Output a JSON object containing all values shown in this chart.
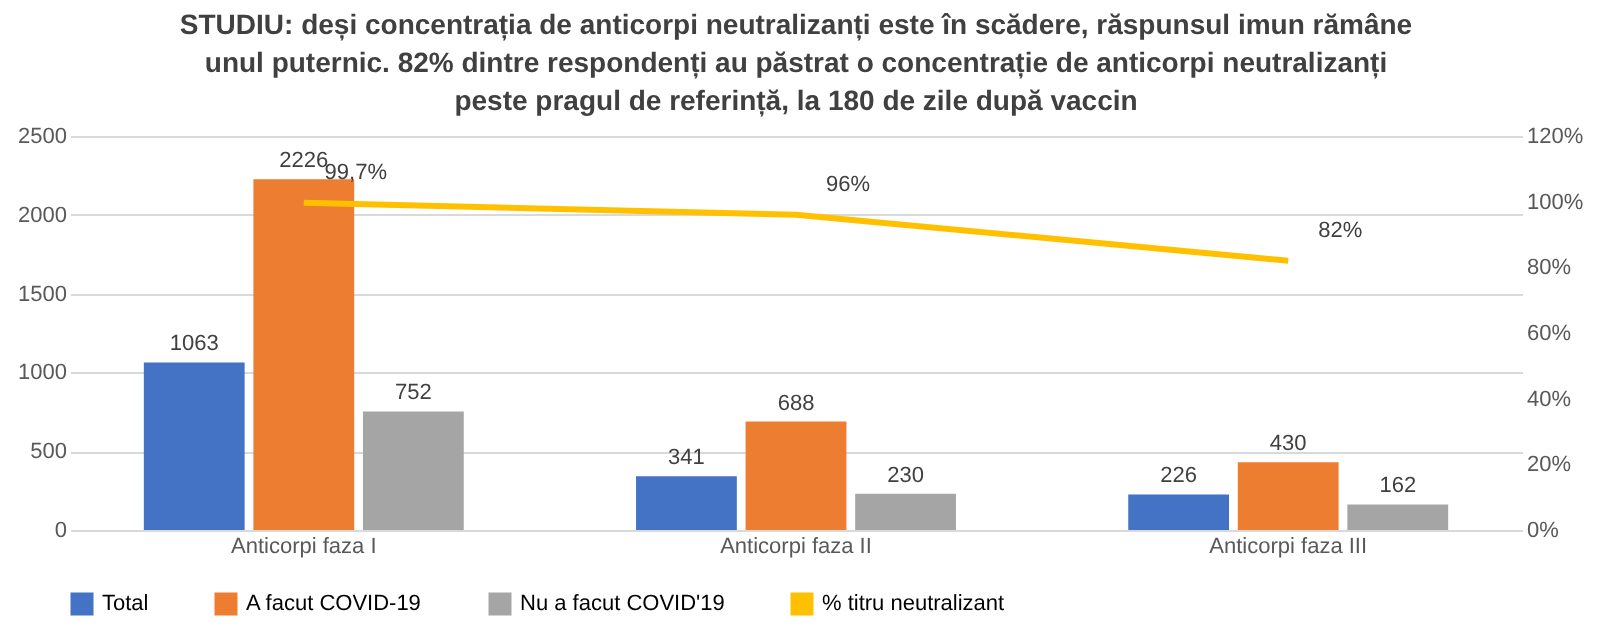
{
  "chart_data": {
    "type": "bar",
    "title": "STUDIU: deși concentrația de anticorpi neutralizanți este în scădere, răspunsul imun rămâne unul puternic. 82% dintre respondenți au păstrat o concentrație de anticorpi neutralizanți peste pragul de referință, la 180 de zile după vaccin",
    "categories": [
      "Anticorpi faza I",
      "Anticorpi faza II",
      "Anticorpi faza III"
    ],
    "series": [
      {
        "name": "Total",
        "color": "#4472c4",
        "values": [
          1063,
          341,
          226
        ],
        "value_labels": [
          "1063",
          "341",
          "226"
        ]
      },
      {
        "name": "A facut COVID-19",
        "color": "#ed7d31",
        "values": [
          2226,
          688,
          430
        ],
        "value_labels": [
          "2226",
          "688",
          "430"
        ]
      },
      {
        "name": "Nu a facut COVID'19",
        "color": "#a5a5a5",
        "values": [
          752,
          230,
          162
        ],
        "value_labels": [
          "752",
          "230",
          "162"
        ]
      },
      {
        "name": "% titru neutralizant",
        "color": "#ffc000",
        "type": "line",
        "axis": "y2",
        "values": [
          99.7,
          96,
          82
        ],
        "value_labels": [
          "99,7%",
          "96%",
          "82%"
        ]
      }
    ],
    "ylim": [
      0,
      2500
    ],
    "yticks": [
      0,
      500,
      1000,
      1500,
      2000,
      2500
    ],
    "y2lim": [
      0,
      120
    ],
    "y2ticks": [
      {
        "value": 0,
        "label": "0%"
      },
      {
        "value": 20,
        "label": "20%"
      },
      {
        "value": 40,
        "label": "40%"
      },
      {
        "value": 60,
        "label": "60%"
      },
      {
        "value": 80,
        "label": "80%"
      },
      {
        "value": 100,
        "label": "100%"
      },
      {
        "value": 120,
        "label": "120%"
      }
    ],
    "grid": "y",
    "legend": "bottom"
  }
}
